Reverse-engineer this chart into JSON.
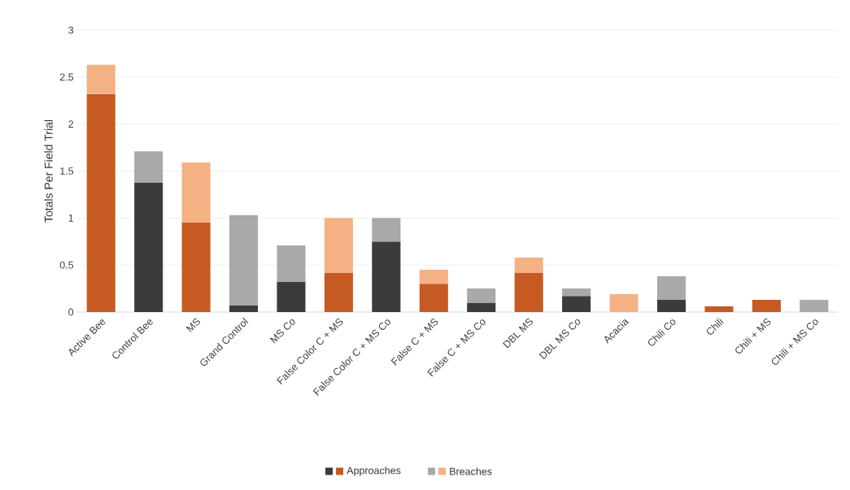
{
  "chart_data": {
    "type": "bar",
    "stacked": true,
    "ylabel": "Totals Per Field Trial",
    "categories": [
      "Active Bee",
      "Control Bee",
      "MS",
      "Grand Control",
      "MS Co",
      "False Color C + MS",
      "False Color C + MS Co",
      "False C + MS",
      "False C + MS Co",
      "DBL MS",
      "DBL MS Co",
      "Acacia",
      "Chili Co",
      "Chili",
      "Chili + MS",
      "Chili + MS Co"
    ],
    "series": [
      {
        "name": "Approaches",
        "values": [
          2.32,
          1.38,
          0.95,
          0.07,
          0.32,
          0.42,
          0.75,
          0.3,
          0.1,
          0.42,
          0.17,
          0,
          0.13,
          0.06,
          0.13,
          0
        ],
        "colors": [
          "#c55a22",
          "#3b3b3b",
          "#c55a22",
          "#3b3b3b",
          "#3b3b3b",
          "#c55a22",
          "#3b3b3b",
          "#c55a22",
          "#3b3b3b",
          "#c55a22",
          "#3b3b3b",
          "#c55a22",
          "#3b3b3b",
          "#c55a22",
          "#c55a22",
          "#3b3b3b"
        ]
      },
      {
        "name": "Breaches",
        "values": [
          0.31,
          0.33,
          0.64,
          0.96,
          0.39,
          0.58,
          0.25,
          0.15,
          0.15,
          0.16,
          0.08,
          0.19,
          0.25,
          0,
          0,
          0.13
        ],
        "colors": [
          "#f4b183",
          "#a9a9a9",
          "#f4b183",
          "#a9a9a9",
          "#a9a9a9",
          "#f4b183",
          "#a9a9a9",
          "#f4b183",
          "#a9a9a9",
          "#f4b183",
          "#a9a9a9",
          "#f4b183",
          "#a9a9a9",
          "#f4b183",
          "#f4b183",
          "#a9a9a9"
        ]
      }
    ],
    "ylim": [
      0,
      3
    ],
    "yticks": [
      0,
      0.5,
      1,
      1.5,
      2,
      2.5,
      3
    ],
    "grid": "y",
    "legend": "bottom"
  }
}
